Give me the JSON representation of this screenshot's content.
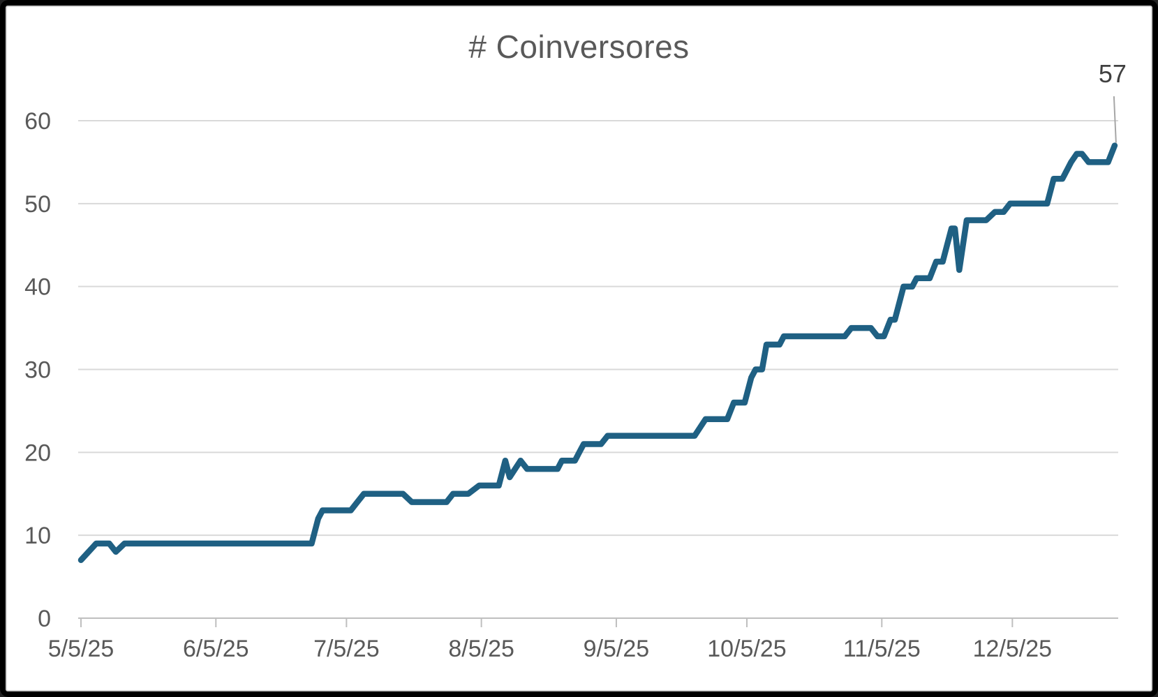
{
  "window": {
    "frame_background": "#000000",
    "panel_background": "#ffffff",
    "panel_border_color": "#d2d2d2"
  },
  "chart_data": {
    "type": "line",
    "title": "# Coinversores",
    "title_color": "#595959",
    "xlabel": "",
    "ylabel": "",
    "ylim": [
      0,
      60
    ],
    "y_ticks": [
      0,
      10,
      20,
      30,
      40,
      50,
      60
    ],
    "x_domain_days": [
      0,
      238
    ],
    "x_ticks": [
      {
        "day": 0,
        "label": "5/5/25"
      },
      {
        "day": 31,
        "label": "6/5/25"
      },
      {
        "day": 61,
        "label": "7/5/25"
      },
      {
        "day": 92,
        "label": "8/5/25"
      },
      {
        "day": 123,
        "label": "9/5/25"
      },
      {
        "day": 153,
        "label": "10/5/25"
      },
      {
        "day": 184,
        "label": "11/5/25"
      },
      {
        "day": 214,
        "label": "12/5/25"
      }
    ],
    "grid_on": true,
    "legend": "none",
    "line_color": "#1f6083",
    "line_width": 8.5,
    "grid_color": "#d9d9d9",
    "axis_color": "#bfbfbf",
    "tick_label_color": "#595959",
    "tick_label_size": 34,
    "end_label": "57",
    "end_label_color": "#404040",
    "leader_line_color": "#a6a6a6",
    "series_name": "Coinversores",
    "points_format": "[day_offset_from_5/5/25, value]",
    "points": [
      [
        0,
        7
      ],
      [
        3.5,
        9
      ],
      [
        6.5,
        9
      ],
      [
        8,
        8
      ],
      [
        10,
        9
      ],
      [
        53,
        9
      ],
      [
        54.5,
        12
      ],
      [
        55.5,
        13
      ],
      [
        62,
        13
      ],
      [
        63.5,
        14
      ],
      [
        65,
        15
      ],
      [
        74,
        15
      ],
      [
        76,
        14
      ],
      [
        84,
        14
      ],
      [
        85.5,
        15
      ],
      [
        89,
        15
      ],
      [
        91.5,
        16
      ],
      [
        96,
        16
      ],
      [
        97.5,
        19
      ],
      [
        98.5,
        17
      ],
      [
        101,
        19
      ],
      [
        102.5,
        18
      ],
      [
        109.5,
        18
      ],
      [
        110.5,
        19
      ],
      [
        113.5,
        19
      ],
      [
        114.5,
        20
      ],
      [
        115.5,
        21
      ],
      [
        119.5,
        21
      ],
      [
        121,
        22
      ],
      [
        141,
        22
      ],
      [
        143.5,
        24
      ],
      [
        148.5,
        24
      ],
      [
        150,
        26
      ],
      [
        152.5,
        26
      ],
      [
        154,
        29
      ],
      [
        155,
        30
      ],
      [
        156.5,
        30
      ],
      [
        157.5,
        33
      ],
      [
        160.5,
        33
      ],
      [
        161.5,
        34
      ],
      [
        175.5,
        34
      ],
      [
        177,
        35
      ],
      [
        181.5,
        35
      ],
      [
        183,
        34
      ],
      [
        184.5,
        34
      ],
      [
        186,
        36
      ],
      [
        187,
        36
      ],
      [
        189,
        40
      ],
      [
        191,
        40
      ],
      [
        192,
        41
      ],
      [
        195,
        41
      ],
      [
        196.5,
        43
      ],
      [
        198,
        43
      ],
      [
        199,
        45
      ],
      [
        200,
        47
      ],
      [
        200.8,
        47
      ],
      [
        201.8,
        42
      ],
      [
        203.5,
        48
      ],
      [
        208,
        48
      ],
      [
        210,
        49
      ],
      [
        212,
        49
      ],
      [
        213.5,
        50
      ],
      [
        222,
        50
      ],
      [
        223.5,
        53
      ],
      [
        225.5,
        53
      ],
      [
        227.5,
        55
      ],
      [
        228.8,
        56
      ],
      [
        230,
        56
      ],
      [
        231.5,
        55
      ],
      [
        236,
        55
      ],
      [
        237.5,
        57
      ]
    ],
    "first_value": 7,
    "last_value": 57
  }
}
